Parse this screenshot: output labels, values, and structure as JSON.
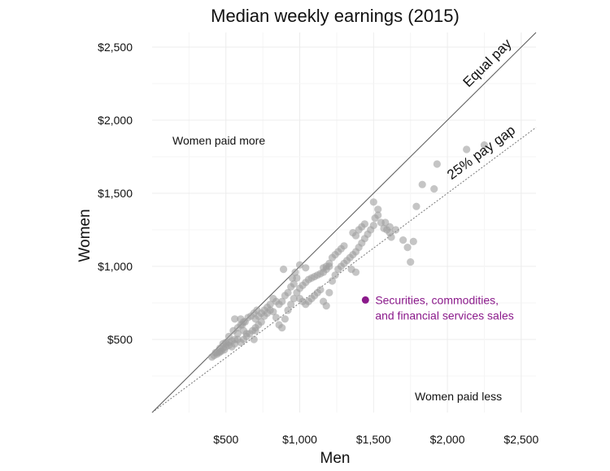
{
  "chart_data": {
    "type": "scatter",
    "title": "Median weekly earnings (2015)",
    "xlabel": "Men",
    "ylabel": "Women",
    "xlim": [
      0,
      2600
    ],
    "ylim": [
      0,
      2600
    ],
    "x_ticks": [
      500,
      1000,
      1500,
      2000,
      2500
    ],
    "x_tick_labels": [
      "$500",
      "$1,000",
      "$1,500",
      "$2,000",
      "$2,500"
    ],
    "y_ticks": [
      500,
      1000,
      1500,
      2000,
      2500
    ],
    "y_tick_labels": [
      "$500",
      "$1,000",
      "$1,500",
      "$2,000",
      "$2,500"
    ],
    "grid": true,
    "point_color": "#9e9e9e",
    "highlight_color": "#8b1a8b",
    "reference_lines": [
      {
        "label": "Equal pay",
        "slope": 1.0,
        "style": "solid"
      },
      {
        "label": "25% pay gap",
        "slope": 0.75,
        "style": "dotted"
      }
    ],
    "annotations": [
      "Women paid more",
      "Women paid less"
    ],
    "highlight": {
      "x": 1445,
      "y": 770,
      "label_lines": [
        "Securities, commodities,",
        "and financial services sales"
      ]
    },
    "points": [
      [
        405,
        380
      ],
      [
        420,
        390
      ],
      [
        440,
        400
      ],
      [
        455,
        410
      ],
      [
        470,
        420
      ],
      [
        490,
        430
      ],
      [
        500,
        450
      ],
      [
        430,
        410
      ],
      [
        460,
        440
      ],
      [
        480,
        470
      ],
      [
        500,
        480
      ],
      [
        520,
        460
      ],
      [
        540,
        450
      ],
      [
        560,
        470
      ],
      [
        580,
        500
      ],
      [
        600,
        480
      ],
      [
        620,
        500
      ],
      [
        640,
        520
      ],
      [
        660,
        540
      ],
      [
        680,
        560
      ],
      [
        700,
        580
      ],
      [
        520,
        520
      ],
      [
        550,
        560
      ],
      [
        580,
        580
      ],
      [
        610,
        600
      ],
      [
        630,
        620
      ],
      [
        650,
        650
      ],
      [
        670,
        660
      ],
      [
        690,
        680
      ],
      [
        710,
        700
      ],
      [
        560,
        640
      ],
      [
        600,
        640
      ],
      [
        620,
        560
      ],
      [
        640,
        540
      ],
      [
        690,
        500
      ],
      [
        700,
        560
      ],
      [
        720,
        600
      ],
      [
        740,
        620
      ],
      [
        760,
        660
      ],
      [
        780,
        680
      ],
      [
        800,
        700
      ],
      [
        820,
        690
      ],
      [
        840,
        650
      ],
      [
        860,
        600
      ],
      [
        880,
        580
      ],
      [
        900,
        640
      ],
      [
        920,
        700
      ],
      [
        940,
        740
      ],
      [
        960,
        780
      ],
      [
        980,
        820
      ],
      [
        1000,
        850
      ],
      [
        1020,
        870
      ],
      [
        1040,
        890
      ],
      [
        1060,
        910
      ],
      [
        1080,
        920
      ],
      [
        1100,
        930
      ],
      [
        1120,
        940
      ],
      [
        1140,
        950
      ],
      [
        1160,
        960
      ],
      [
        1180,
        980
      ],
      [
        1000,
        780
      ],
      [
        1020,
        760
      ],
      [
        1040,
        740
      ],
      [
        1060,
        760
      ],
      [
        1080,
        780
      ],
      [
        1100,
        800
      ],
      [
        1120,
        820
      ],
      [
        1140,
        840
      ],
      [
        1160,
        760
      ],
      [
        1180,
        730
      ],
      [
        1200,
        1000
      ],
      [
        1200,
        820
      ],
      [
        1220,
        900
      ],
      [
        1240,
        940
      ],
      [
        1260,
        980
      ],
      [
        1280,
        1000
      ],
      [
        1300,
        1020
      ],
      [
        1320,
        1040
      ],
      [
        1340,
        1060
      ],
      [
        1360,
        1080
      ],
      [
        1380,
        1100
      ],
      [
        1400,
        1130
      ],
      [
        1420,
        1160
      ],
      [
        1440,
        1190
      ],
      [
        1460,
        1220
      ],
      [
        1480,
        1250
      ],
      [
        1500,
        1280
      ],
      [
        1510,
        1330
      ],
      [
        1530,
        1350
      ],
      [
        1550,
        1300
      ],
      [
        1570,
        1260
      ],
      [
        1590,
        1250
      ],
      [
        1610,
        1230
      ],
      [
        1620,
        1200
      ],
      [
        1360,
        1230
      ],
      [
        1380,
        1210
      ],
      [
        1400,
        1250
      ],
      [
        1420,
        1270
      ],
      [
        1440,
        1290
      ],
      [
        1350,
        980
      ],
      [
        1380,
        960
      ],
      [
        1300,
        1140
      ],
      [
        1280,
        1120
      ],
      [
        1260,
        1100
      ],
      [
        1240,
        1080
      ],
      [
        1220,
        1060
      ],
      [
        1200,
        1020
      ],
      [
        1180,
        1000
      ],
      [
        1160,
        990
      ],
      [
        980,
        920
      ],
      [
        960,
        880
      ],
      [
        940,
        860
      ],
      [
        920,
        820
      ],
      [
        900,
        800
      ],
      [
        880,
        760
      ],
      [
        860,
        740
      ],
      [
        840,
        760
      ],
      [
        820,
        780
      ],
      [
        800,
        740
      ],
      [
        780,
        720
      ],
      [
        760,
        700
      ],
      [
        740,
        680
      ],
      [
        720,
        660
      ],
      [
        700,
        640
      ],
      [
        600,
        600
      ],
      [
        620,
        620
      ],
      [
        580,
        540
      ],
      [
        560,
        500
      ],
      [
        540,
        490
      ],
      [
        520,
        480
      ],
      [
        500,
        470
      ],
      [
        480,
        440
      ],
      [
        460,
        420
      ],
      [
        440,
        410
      ],
      [
        1500,
        1440
      ],
      [
        1530,
        1390
      ],
      [
        1580,
        1300
      ],
      [
        1610,
        1270
      ],
      [
        1650,
        1250
      ],
      [
        1700,
        1180
      ],
      [
        1730,
        1130
      ],
      [
        1750,
        1030
      ],
      [
        1770,
        1170
      ],
      [
        1790,
        1410
      ],
      [
        1830,
        1560
      ],
      [
        1910,
        1530
      ],
      [
        1930,
        1700
      ],
      [
        2130,
        1800
      ],
      [
        2250,
        1830
      ],
      [
        890,
        980
      ],
      [
        1000,
        1010
      ],
      [
        1040,
        990
      ],
      [
        950,
        920
      ],
      [
        970,
        960
      ]
    ]
  }
}
